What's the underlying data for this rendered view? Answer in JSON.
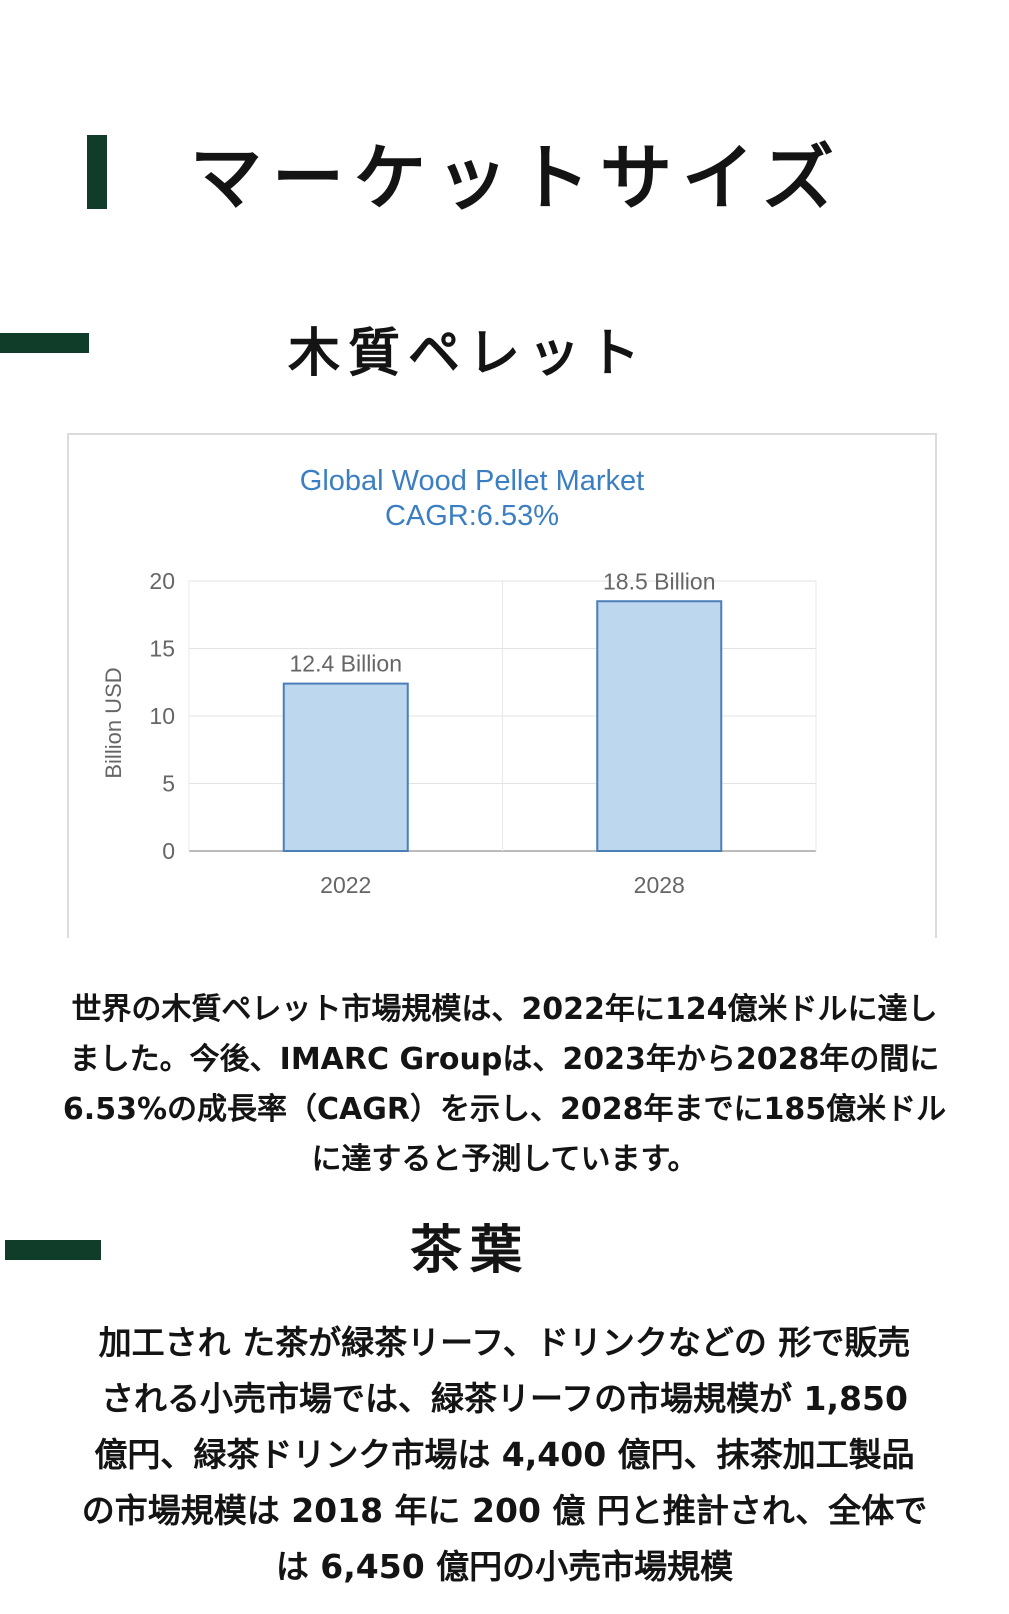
{
  "page": {
    "title": "マーケットサイズ",
    "section1_heading": "木質ペレット",
    "section1_paragraph": [
      "世界の木質ペレット市場規模は、2022年に124億米ドルに達し",
      "ました。今後、IMARC Groupは、2023年から2028年の間に",
      "6.53%の成長率（CAGR）を示し、2028年までに185億米ドル",
      "に達すると予測しています。"
    ],
    "section2_heading": "茶葉",
    "section2_paragraph": [
      "加工され た茶が緑茶リーフ、ドリンクなどの 形で販売",
      "される小売市場では、緑茶リーフの市場規模が 1,850",
      "億円、緑茶ドリンク市場は 4,400 億円、抹茶加工製品",
      "の市場規模は 2018 年に 200 億 円と推計され、全体で",
      "は 6,450 億円の小売市場規模"
    ],
    "accent_color": "#0f3d2a"
  },
  "chart_data": {
    "type": "bar",
    "title": "Global Wood Pellet Market",
    "subtitle": "CAGR:6.53%",
    "categories": [
      "2022",
      "2028"
    ],
    "values": [
      12.4,
      18.5
    ],
    "data_labels": [
      "12.4 Billion",
      "18.5 Billion"
    ],
    "ylabel": "Billion USD",
    "xlabel": "",
    "ylim": [
      0,
      20
    ],
    "yticks": [
      0,
      5,
      10,
      15,
      20
    ],
    "grid": true,
    "bar_color": "#bdd7ee",
    "bar_stroke": "#4a7fb8",
    "title_color": "#3b7fc2"
  }
}
